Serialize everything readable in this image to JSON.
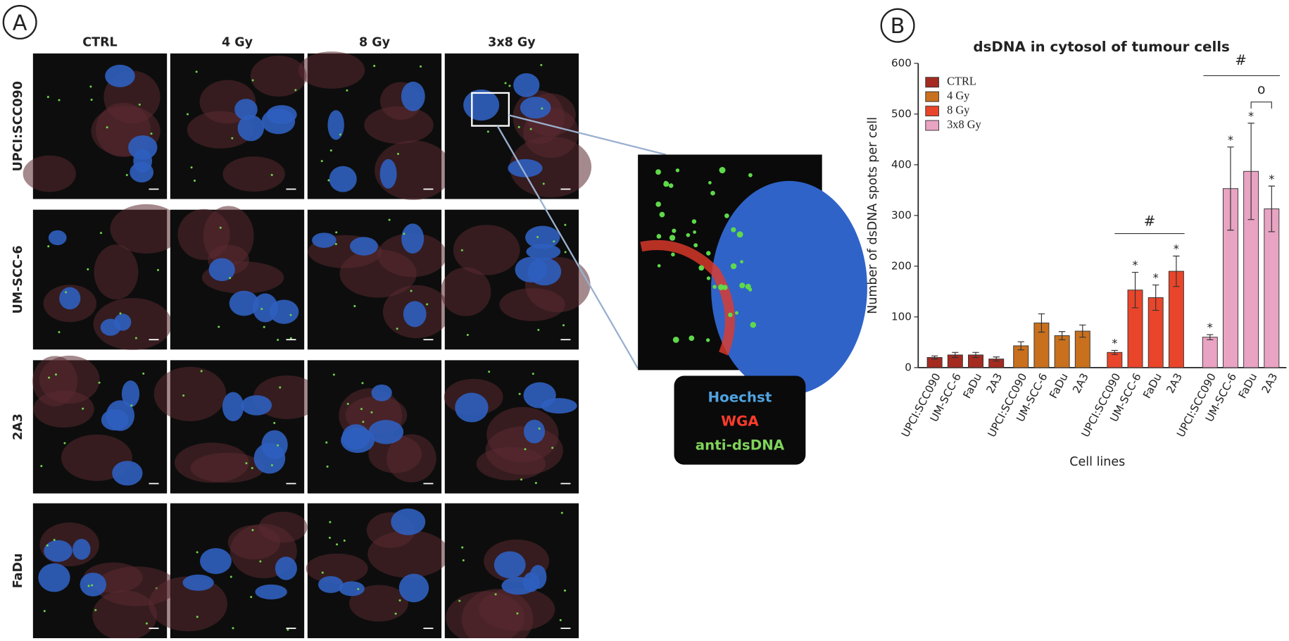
{
  "panel_labels": [
    "A",
    "B"
  ],
  "panel_a": {
    "columns": [
      "CTRL",
      "4 Gy",
      "8 Gy",
      "3x8 Gy"
    ],
    "rows": [
      "UPCI:SCC090",
      "UM-SCC-6",
      "2A3",
      "FaDu"
    ],
    "stain_legend": [
      {
        "text": "Hoechst",
        "color": "#4fa3e0"
      },
      {
        "text": "WGA",
        "color": "#ff3b2a"
      },
      {
        "text": "anti-dsDNA",
        "color": "#7fd35a"
      }
    ]
  },
  "chart_data": {
    "type": "bar",
    "title": "dsDNA in cytosol of tumour cells",
    "y_label": "Number of dsDNA spots per cell",
    "x_label": "Cell lines",
    "categories": [
      "UPCI:SCC090",
      "UM-SCC-6",
      "FaDu",
      "2A3"
    ],
    "series": [
      {
        "name": "CTRL",
        "color": "#a52a20",
        "values": [
          20,
          25,
          25,
          17
        ],
        "errors": [
          3,
          5,
          5,
          4
        ],
        "markers": [
          null,
          null,
          null,
          null
        ]
      },
      {
        "name": "4 Gy",
        "color": "#c8701e",
        "values": [
          43,
          88,
          63,
          72
        ],
        "errors": [
          8,
          18,
          8,
          12
        ],
        "markers": [
          null,
          null,
          null,
          null
        ]
      },
      {
        "name": "8 Gy",
        "color": "#e8452a",
        "values": [
          30,
          153,
          138,
          190
        ],
        "errors": [
          4,
          35,
          25,
          30
        ],
        "markers": [
          "*",
          "*",
          "*",
          "*"
        ]
      },
      {
        "name": "3x8 Gy",
        "color": "#e9a3c3",
        "values": [
          60,
          353,
          387,
          313
        ],
        "errors": [
          5,
          82,
          95,
          45
        ],
        "markers": [
          "*",
          "*",
          "*",
          "*"
        ]
      }
    ],
    "annotations": [
      "#",
      "#",
      "o"
    ],
    "ylim": [
      0,
      600
    ],
    "yticks": [
      0,
      100,
      200,
      300,
      400,
      500,
      600
    ],
    "legend": "top-left"
  }
}
